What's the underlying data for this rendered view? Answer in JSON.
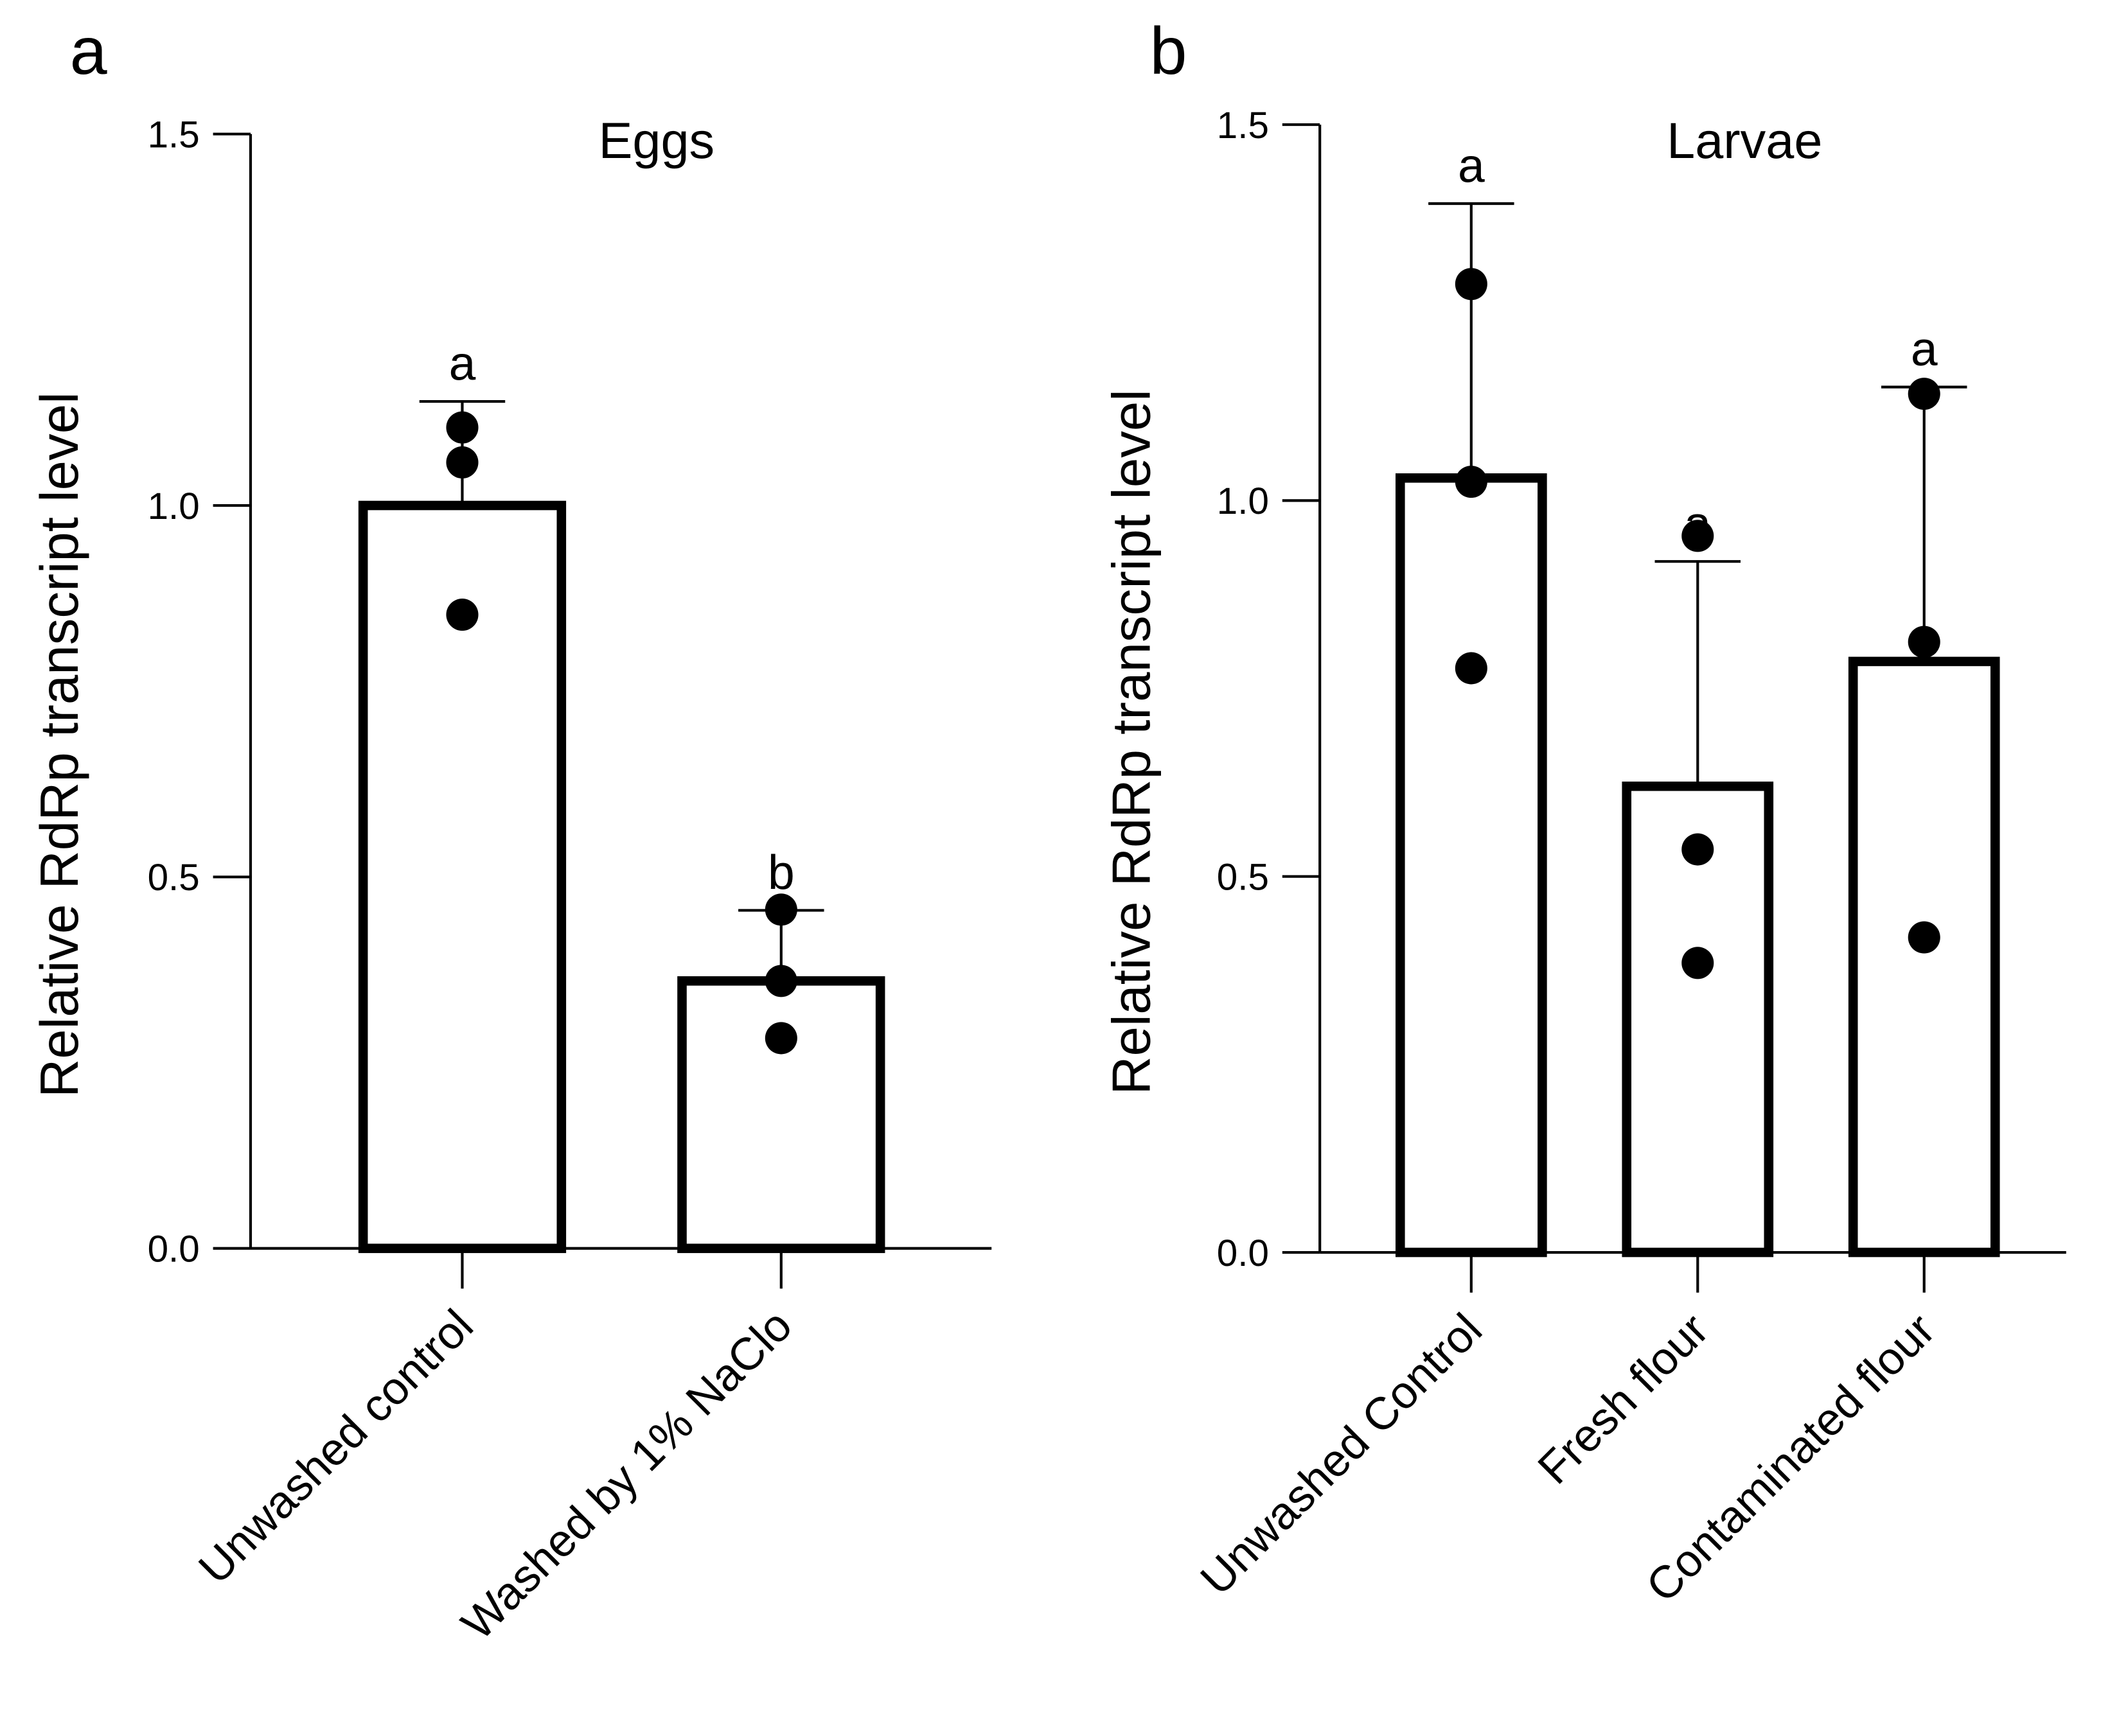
{
  "chart_data": [
    {
      "panel_label": "a",
      "type": "bar",
      "title": "Eggs",
      "ylabel": "Relative RdRp transcript level",
      "xlabel": "",
      "ylim": [
        0,
        1.5
      ],
      "yticks": [
        "0.0",
        "0.5",
        "1.0",
        "1.5"
      ],
      "ytick_values": [
        0,
        0.5,
        1.0,
        1.5
      ],
      "categories": [
        "Unwashed control",
        "Washed by 1% NaClo"
      ],
      "values": [
        1.0,
        0.36
      ],
      "error_upper": [
        1.14,
        0.455
      ],
      "points": [
        [
          1.105,
          1.058,
          0.853
        ],
        [
          0.456,
          0.36,
          0.283
        ]
      ],
      "significance": [
        "a",
        "b"
      ],
      "grid": false
    },
    {
      "panel_label": "b",
      "type": "bar",
      "title": "Larvae",
      "ylabel": "Relative RdRp transcript level",
      "xlabel": "",
      "ylim": [
        0,
        1.5
      ],
      "yticks": [
        "0.0",
        "0.5",
        "1.0",
        "1.5"
      ],
      "ytick_values": [
        0,
        0.5,
        1.0,
        1.5
      ],
      "categories": [
        "Unwashed Control",
        "Fresh flour",
        "Contaminated flour"
      ],
      "values": [
        1.03,
        0.62,
        0.786
      ],
      "error_upper": [
        1.395,
        0.919,
        1.151
      ],
      "points": [
        [
          1.288,
          0.777,
          1.025
        ],
        [
          0.953,
          0.536,
          0.385
        ],
        [
          1.142,
          0.812,
          0.419
        ]
      ],
      "significance": [
        "a",
        "a",
        "a"
      ],
      "grid": false
    }
  ]
}
